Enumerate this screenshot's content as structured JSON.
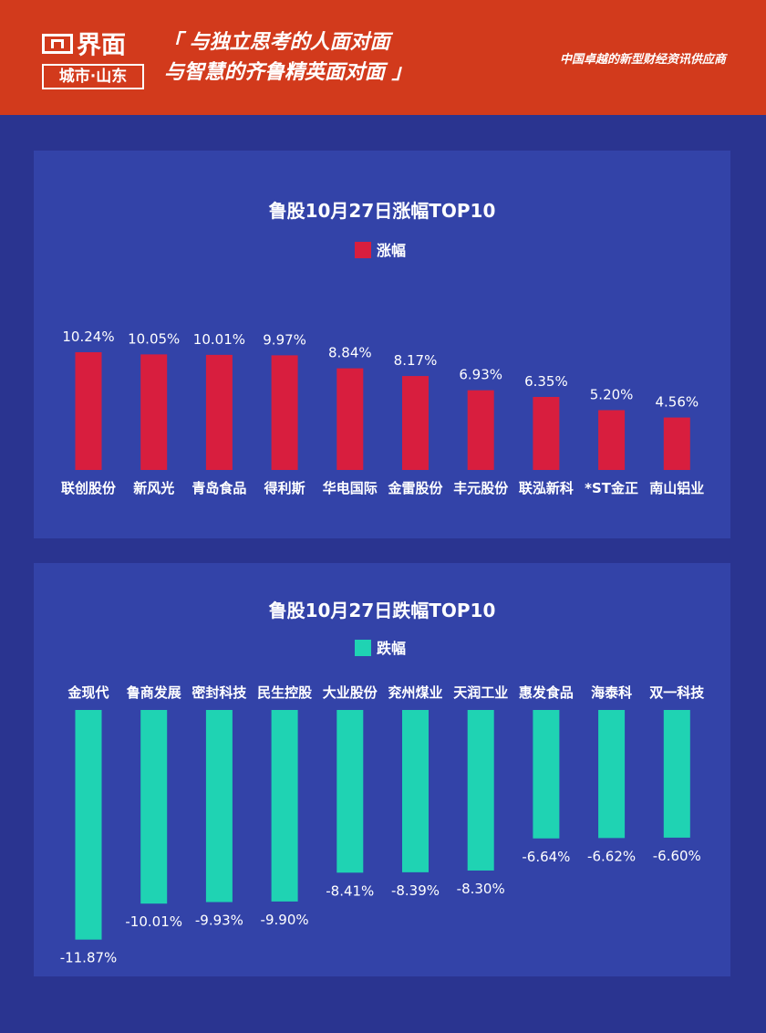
{
  "header": {
    "logo_main": "界面",
    "logo_sub": "城市·山东",
    "slogan_line1": "「 与独立思考的人面对面",
    "slogan_line2": "与智慧的齐鲁精英面对面 」",
    "tagline": "中国卓越的新型财经资讯供应商",
    "bg_color": "#d23a1c"
  },
  "chart_data": [
    {
      "type": "bar",
      "title": "鲁股10月27日涨幅TOP10",
      "categories": [
        "联创股份",
        "新风光",
        "青岛食品",
        "得利斯",
        "华电国际",
        "金雷股份",
        "丰元股份",
        "联泓新科",
        "*ST金正",
        "南山铝业"
      ],
      "series": [
        {
          "name": "涨幅",
          "values": [
            10.24,
            10.05,
            10.01,
            9.97,
            8.84,
            8.17,
            6.93,
            6.35,
            5.2,
            4.56
          ],
          "labels": [
            "10.24%",
            "10.05%",
            "10.01%",
            "9.97%",
            "8.84%",
            "8.17%",
            "6.93%",
            "6.35%",
            "5.20%",
            "4.56%"
          ],
          "color": "#d81e3e"
        }
      ],
      "legend_position": "top-center",
      "grid": false
    },
    {
      "type": "bar",
      "title": "鲁股10月27日跌幅TOP10",
      "categories": [
        "金现代",
        "鲁商发展",
        "密封科技",
        "民生控股",
        "大业股份",
        "兖州煤业",
        "天润工业",
        "惠发食品",
        "海泰科",
        "双一科技"
      ],
      "series": [
        {
          "name": "跌幅",
          "values": [
            -11.87,
            -10.01,
            -9.93,
            -9.9,
            -8.41,
            -8.39,
            -8.3,
            -6.64,
            -6.62,
            -6.6
          ],
          "labels": [
            "-11.87%",
            "-10.01%",
            "-9.93%",
            "-9.90%",
            "-8.41%",
            "-8.39%",
            "-8.30%",
            "-6.64%",
            "-6.62%",
            "-6.60%"
          ],
          "color": "#1fd3b3"
        }
      ],
      "legend_position": "top-center",
      "grid": false
    }
  ]
}
